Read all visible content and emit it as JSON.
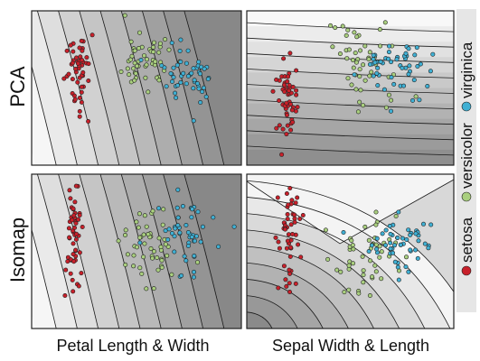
{
  "figure": {
    "row_labels": [
      "PCA",
      "Isomap"
    ],
    "col_labels": [
      "Petal Length & Width",
      "Sepal Width & Length"
    ]
  },
  "legend": {
    "entries": [
      {
        "label": "setosa",
        "color": "#c8202a"
      },
      {
        "label": "versicolor",
        "color": "#a9cf7e"
      },
      {
        "label": "virginica",
        "color": "#3fb0d4"
      }
    ]
  },
  "chart_data": [
    {
      "type": "scatter",
      "row": "PCA",
      "column": "Petal Length & Width",
      "contour_orientation": "near-vertical",
      "shading": "lighter left, darker right",
      "series": [
        {
          "name": "setosa",
          "color": "#c8202a",
          "center": [
            0.22,
            0.38
          ],
          "spread": [
            0.03,
            0.14
          ]
        },
        {
          "name": "versicolor",
          "color": "#a9cf7e",
          "center": [
            0.55,
            0.34
          ],
          "spread": [
            0.07,
            0.1
          ]
        },
        {
          "name": "virginica",
          "color": "#3fb0d4",
          "center": [
            0.74,
            0.42
          ],
          "spread": [
            0.08,
            0.1
          ]
        }
      ]
    },
    {
      "type": "scatter",
      "row": "PCA",
      "column": "Sepal Width & Length",
      "contour_orientation": "near-horizontal",
      "shading": "lighter top, darker bottom",
      "series": [
        {
          "name": "setosa",
          "color": "#c8202a",
          "center": [
            0.2,
            0.56
          ],
          "spread": [
            0.03,
            0.16
          ]
        },
        {
          "name": "versicolor",
          "color": "#a9cf7e",
          "center": [
            0.58,
            0.37
          ],
          "spread": [
            0.08,
            0.13
          ]
        },
        {
          "name": "virginica",
          "color": "#3fb0d4",
          "center": [
            0.72,
            0.4
          ],
          "spread": [
            0.1,
            0.1
          ]
        }
      ]
    },
    {
      "type": "scatter",
      "row": "Isomap",
      "column": "Petal Length & Width",
      "contour_orientation": "near-vertical",
      "shading": "lighter left, darker right",
      "series": [
        {
          "name": "setosa",
          "color": "#c8202a",
          "center": [
            0.2,
            0.4
          ],
          "spread": [
            0.02,
            0.18
          ]
        },
        {
          "name": "versicolor",
          "color": "#a9cf7e",
          "center": [
            0.56,
            0.46
          ],
          "spread": [
            0.07,
            0.12
          ]
        },
        {
          "name": "virginica",
          "color": "#3fb0d4",
          "center": [
            0.74,
            0.4
          ],
          "spread": [
            0.08,
            0.1
          ]
        }
      ]
    },
    {
      "type": "scatter",
      "row": "Isomap",
      "column": "Sepal Width & Length",
      "contour_orientation": "curved",
      "shading": "darker bottom-left",
      "series": [
        {
          "name": "setosa",
          "color": "#c8202a",
          "center": [
            0.2,
            0.4
          ],
          "spread": [
            0.03,
            0.2
          ]
        },
        {
          "name": "versicolor",
          "color": "#a9cf7e",
          "center": [
            0.58,
            0.5
          ],
          "spread": [
            0.08,
            0.12
          ]
        },
        {
          "name": "virginica",
          "color": "#3fb0d4",
          "center": [
            0.74,
            0.44
          ],
          "spread": [
            0.08,
            0.1
          ]
        }
      ]
    }
  ]
}
